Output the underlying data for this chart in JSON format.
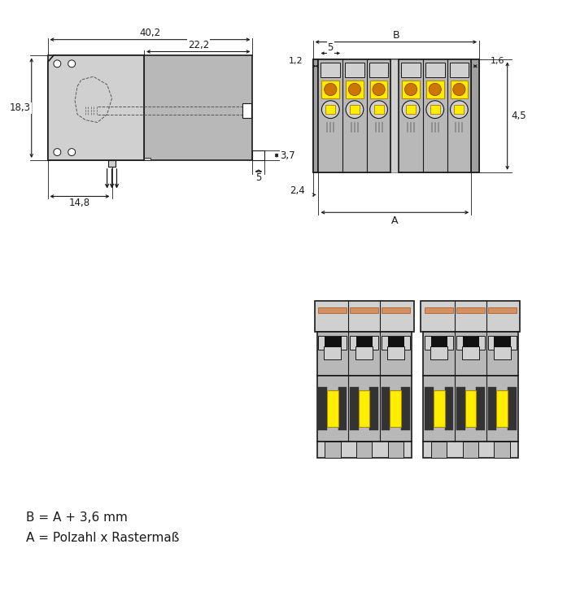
{
  "bg_color": "#ffffff",
  "line_color": "#1a1a1a",
  "gray_body": "#b8b8b8",
  "gray_light": "#d0d0d0",
  "gray_dark": "#888888",
  "gray_med": "#a0a0a0",
  "yellow_fill": "#ffee00",
  "orange_fill": "#cc7700",
  "salmon_fill": "#d49060",
  "white": "#ffffff",
  "formula_line1": "B = A + 3,6 mm",
  "formula_line2": "A = Polzahl x Rastermaß",
  "dim_402": "40,2",
  "dim_222": "22,2",
  "dim_183": "18,3",
  "dim_148": "14,8",
  "dim_37": "3,7",
  "dim_5": "5",
  "dim_B": "B",
  "dim_12": "1,2",
  "dim_5r": "5",
  "dim_16": "1,6",
  "dim_45": "4,5",
  "dim_24": "2,4",
  "dim_A": "A"
}
